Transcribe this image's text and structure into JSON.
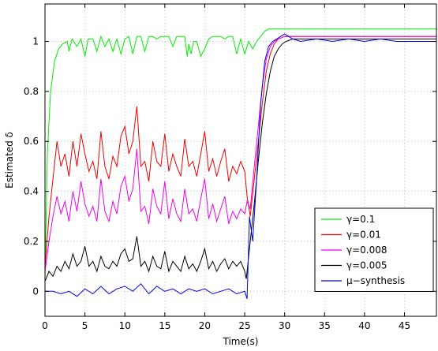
{
  "chart_data": {
    "type": "line",
    "xlabel": "Time(s)",
    "ylabel": "Estimated δ",
    "xlim": [
      0,
      49
    ],
    "ylim": [
      -0.1,
      1.15
    ],
    "xticks": [
      0,
      5,
      10,
      15,
      20,
      25,
      30,
      35,
      40,
      45
    ],
    "yticks": [
      0,
      0.2,
      0.4,
      0.6,
      0.8,
      1
    ],
    "ytick_labels": [
      "0",
      "0.2",
      "0.4",
      "0.6",
      "0.8",
      "1"
    ],
    "grid": true,
    "legend_position": "bottom-right",
    "series": [
      {
        "name": "γ=0.1",
        "color": "#00ee00",
        "x": [
          0,
          0.3,
          0.7,
          1.2,
          1.7,
          2.2,
          2.8,
          3.0,
          3.4,
          4.0,
          4.5,
          5.0,
          5.4,
          6.0,
          6.5,
          7.0,
          7.5,
          8.0,
          8.5,
          9.0,
          9.5,
          10.0,
          10.5,
          11.0,
          11.5,
          12.0,
          12.5,
          13.0,
          13.5,
          14.0,
          14.5,
          15.0,
          15.5,
          16.0,
          16.5,
          17.0,
          17.5,
          17.8,
          18.0,
          18.3,
          18.6,
          19.0,
          19.5,
          20.0,
          20.5,
          21.0,
          21.5,
          22.0,
          22.5,
          23.0,
          23.5,
          24.0,
          24.5,
          25.0,
          25.5,
          26.0,
          26.5,
          27.0,
          27.5,
          28.0,
          28.5,
          29.0,
          30.0,
          32.0,
          35.0,
          40.0,
          45.0,
          49.0
        ],
        "y": [
          0.05,
          0.55,
          0.8,
          0.92,
          0.97,
          0.99,
          1.0,
          0.96,
          1.01,
          0.98,
          1.01,
          0.94,
          1.01,
          1.01,
          0.96,
          1.02,
          0.98,
          1.01,
          0.96,
          1.01,
          0.95,
          1.01,
          1.02,
          0.95,
          1.02,
          1.02,
          0.96,
          1.02,
          1.02,
          1.01,
          1.02,
          1.02,
          1.02,
          0.98,
          1.02,
          1.02,
          1.02,
          0.94,
          0.99,
          0.95,
          1.0,
          1.0,
          0.94,
          0.97,
          1.01,
          1.02,
          1.02,
          1.02,
          1.01,
          1.02,
          1.02,
          0.95,
          1.01,
          0.95,
          1.0,
          0.97,
          1.0,
          1.02,
          1.04,
          1.05,
          1.05,
          1.05,
          1.05,
          1.05,
          1.05,
          1.05,
          1.05,
          1.05
        ]
      },
      {
        "name": "γ=0.01",
        "color": "#ee0000",
        "x": [
          0,
          0.5,
          1.0,
          1.5,
          2.0,
          2.5,
          3.0,
          3.5,
          4.0,
          4.5,
          5.0,
          5.5,
          6.0,
          6.5,
          7.0,
          7.5,
          8.0,
          8.5,
          9.0,
          9.5,
          10.0,
          10.5,
          11.0,
          11.5,
          12.0,
          12.5,
          13.0,
          13.5,
          14.0,
          14.5,
          15.0,
          15.5,
          16.0,
          16.5,
          17.0,
          17.5,
          18.0,
          18.5,
          19.0,
          19.5,
          20.0,
          20.5,
          21.0,
          21.5,
          22.0,
          22.5,
          23.0,
          23.5,
          24.0,
          24.5,
          25.0,
          25.3,
          25.7,
          26.2,
          26.7,
          27.2,
          27.7,
          28.2,
          28.7,
          29.2,
          30.0,
          31.0,
          33.0,
          36.0,
          40.0,
          45.0,
          49.0
        ],
        "y": [
          0.1,
          0.3,
          0.45,
          0.6,
          0.5,
          0.55,
          0.46,
          0.6,
          0.5,
          0.63,
          0.55,
          0.48,
          0.52,
          0.45,
          0.64,
          0.5,
          0.45,
          0.54,
          0.5,
          0.62,
          0.66,
          0.55,
          0.6,
          0.74,
          0.5,
          0.52,
          0.44,
          0.6,
          0.52,
          0.5,
          0.63,
          0.48,
          0.55,
          0.5,
          0.46,
          0.61,
          0.5,
          0.52,
          0.46,
          0.55,
          0.64,
          0.48,
          0.53,
          0.46,
          0.52,
          0.57,
          0.44,
          0.5,
          0.47,
          0.52,
          0.48,
          0.38,
          0.3,
          0.45,
          0.6,
          0.75,
          0.88,
          0.95,
          0.99,
          1.01,
          1.02,
          1.02,
          1.02,
          1.02,
          1.02,
          1.02,
          1.02
        ]
      },
      {
        "name": "γ=0.008",
        "color": "#ee00ee",
        "x": [
          0,
          0.5,
          1.0,
          1.5,
          2.0,
          2.5,
          3.0,
          3.5,
          4.0,
          4.5,
          5.0,
          5.5,
          6.0,
          6.5,
          7.0,
          7.5,
          8.0,
          8.5,
          9.0,
          9.5,
          10.0,
          10.5,
          11.0,
          11.5,
          12.0,
          12.5,
          13.0,
          13.5,
          14.0,
          14.5,
          15.0,
          15.5,
          16.0,
          16.5,
          17.0,
          17.5,
          18.0,
          18.5,
          19.0,
          19.5,
          20.0,
          20.5,
          21.0,
          21.5,
          22.0,
          22.5,
          23.0,
          23.5,
          24.0,
          24.5,
          25.0,
          25.3,
          25.7,
          26.2,
          26.7,
          27.2,
          27.7,
          28.2,
          28.7,
          29.2,
          30.0,
          31.0,
          33.0,
          36.0,
          40.0,
          45.0,
          49.0
        ],
        "y": [
          0.08,
          0.2,
          0.3,
          0.38,
          0.31,
          0.36,
          0.28,
          0.4,
          0.32,
          0.44,
          0.35,
          0.3,
          0.34,
          0.28,
          0.45,
          0.32,
          0.28,
          0.36,
          0.31,
          0.42,
          0.46,
          0.36,
          0.41,
          0.57,
          0.32,
          0.34,
          0.27,
          0.41,
          0.34,
          0.31,
          0.44,
          0.29,
          0.37,
          0.31,
          0.28,
          0.41,
          0.31,
          0.33,
          0.28,
          0.37,
          0.45,
          0.29,
          0.35,
          0.28,
          0.33,
          0.38,
          0.27,
          0.32,
          0.29,
          0.33,
          0.31,
          0.36,
          0.33,
          0.5,
          0.66,
          0.82,
          0.93,
          0.98,
          1.0,
          1.01,
          1.02,
          1.02,
          1.02,
          1.02,
          1.02,
          1.02,
          1.02
        ]
      },
      {
        "name": "γ=0.005",
        "color": "#000000",
        "x": [
          0,
          0.5,
          1.0,
          1.5,
          2.0,
          2.5,
          3.0,
          3.5,
          4.0,
          4.5,
          5.0,
          5.5,
          6.0,
          6.5,
          7.0,
          7.5,
          8.0,
          8.5,
          9.0,
          9.5,
          10.0,
          10.5,
          11.0,
          11.5,
          12.0,
          12.5,
          13.0,
          13.5,
          14.0,
          14.5,
          15.0,
          15.5,
          16.0,
          16.5,
          17.0,
          17.5,
          18.0,
          18.5,
          19.0,
          19.5,
          20.0,
          20.5,
          21.0,
          21.5,
          22.0,
          22.5,
          23.0,
          23.5,
          24.0,
          24.5,
          25.0,
          25.2,
          25.7,
          26.2,
          26.7,
          27.2,
          27.7,
          28.2,
          28.7,
          29.2,
          29.7,
          30.2,
          31.0,
          33.0,
          36.0,
          40.0,
          45.0,
          49.0
        ],
        "y": [
          0.04,
          0.08,
          0.06,
          0.1,
          0.08,
          0.12,
          0.09,
          0.15,
          0.1,
          0.12,
          0.18,
          0.1,
          0.12,
          0.08,
          0.14,
          0.1,
          0.09,
          0.12,
          0.1,
          0.15,
          0.17,
          0.12,
          0.13,
          0.22,
          0.1,
          0.12,
          0.08,
          0.14,
          0.1,
          0.09,
          0.16,
          0.08,
          0.12,
          0.1,
          0.08,
          0.14,
          0.09,
          0.11,
          0.08,
          0.12,
          0.17,
          0.09,
          0.12,
          0.08,
          0.11,
          0.13,
          0.09,
          0.12,
          0.1,
          0.12,
          0.08,
          0.05,
          0.2,
          0.35,
          0.52,
          0.67,
          0.79,
          0.88,
          0.94,
          0.97,
          0.99,
          1.0,
          1.01,
          1.01,
          1.01,
          1.01,
          1.01,
          1.01
        ]
      },
      {
        "name": "μ−synthesis",
        "color": "#0000ee",
        "x": [
          0,
          1.0,
          2.0,
          3.0,
          4.0,
          5.0,
          6.0,
          7.0,
          8.0,
          9.0,
          10.0,
          11.0,
          12.0,
          13.0,
          14.0,
          15.0,
          16.0,
          17.0,
          18.0,
          19.0,
          20.0,
          21.0,
          22.0,
          23.0,
          24.0,
          25.0,
          25.3,
          25.6,
          26.0,
          26.5,
          27.0,
          27.5,
          28.0,
          28.5,
          29.0,
          29.5,
          30.0,
          30.5,
          31.0,
          32.0,
          34.0,
          36.0,
          38.0,
          40.0,
          42.0,
          44.0,
          46.0,
          49.0
        ],
        "y": [
          0.0,
          0.0,
          -0.01,
          0.0,
          -0.02,
          0.01,
          -0.01,
          0.02,
          -0.01,
          0.01,
          0.02,
          0.0,
          0.03,
          -0.01,
          0.02,
          0.0,
          0.01,
          -0.01,
          0.01,
          0.0,
          0.01,
          -0.01,
          0.0,
          0.01,
          -0.01,
          0.0,
          -0.03,
          0.3,
          0.2,
          0.45,
          0.75,
          0.92,
          0.98,
          1.0,
          1.01,
          1.02,
          1.03,
          1.02,
          1.01,
          1.0,
          1.01,
          1.0,
          1.01,
          1.0,
          1.01,
          1.0,
          1.0,
          1.0
        ]
      }
    ]
  }
}
